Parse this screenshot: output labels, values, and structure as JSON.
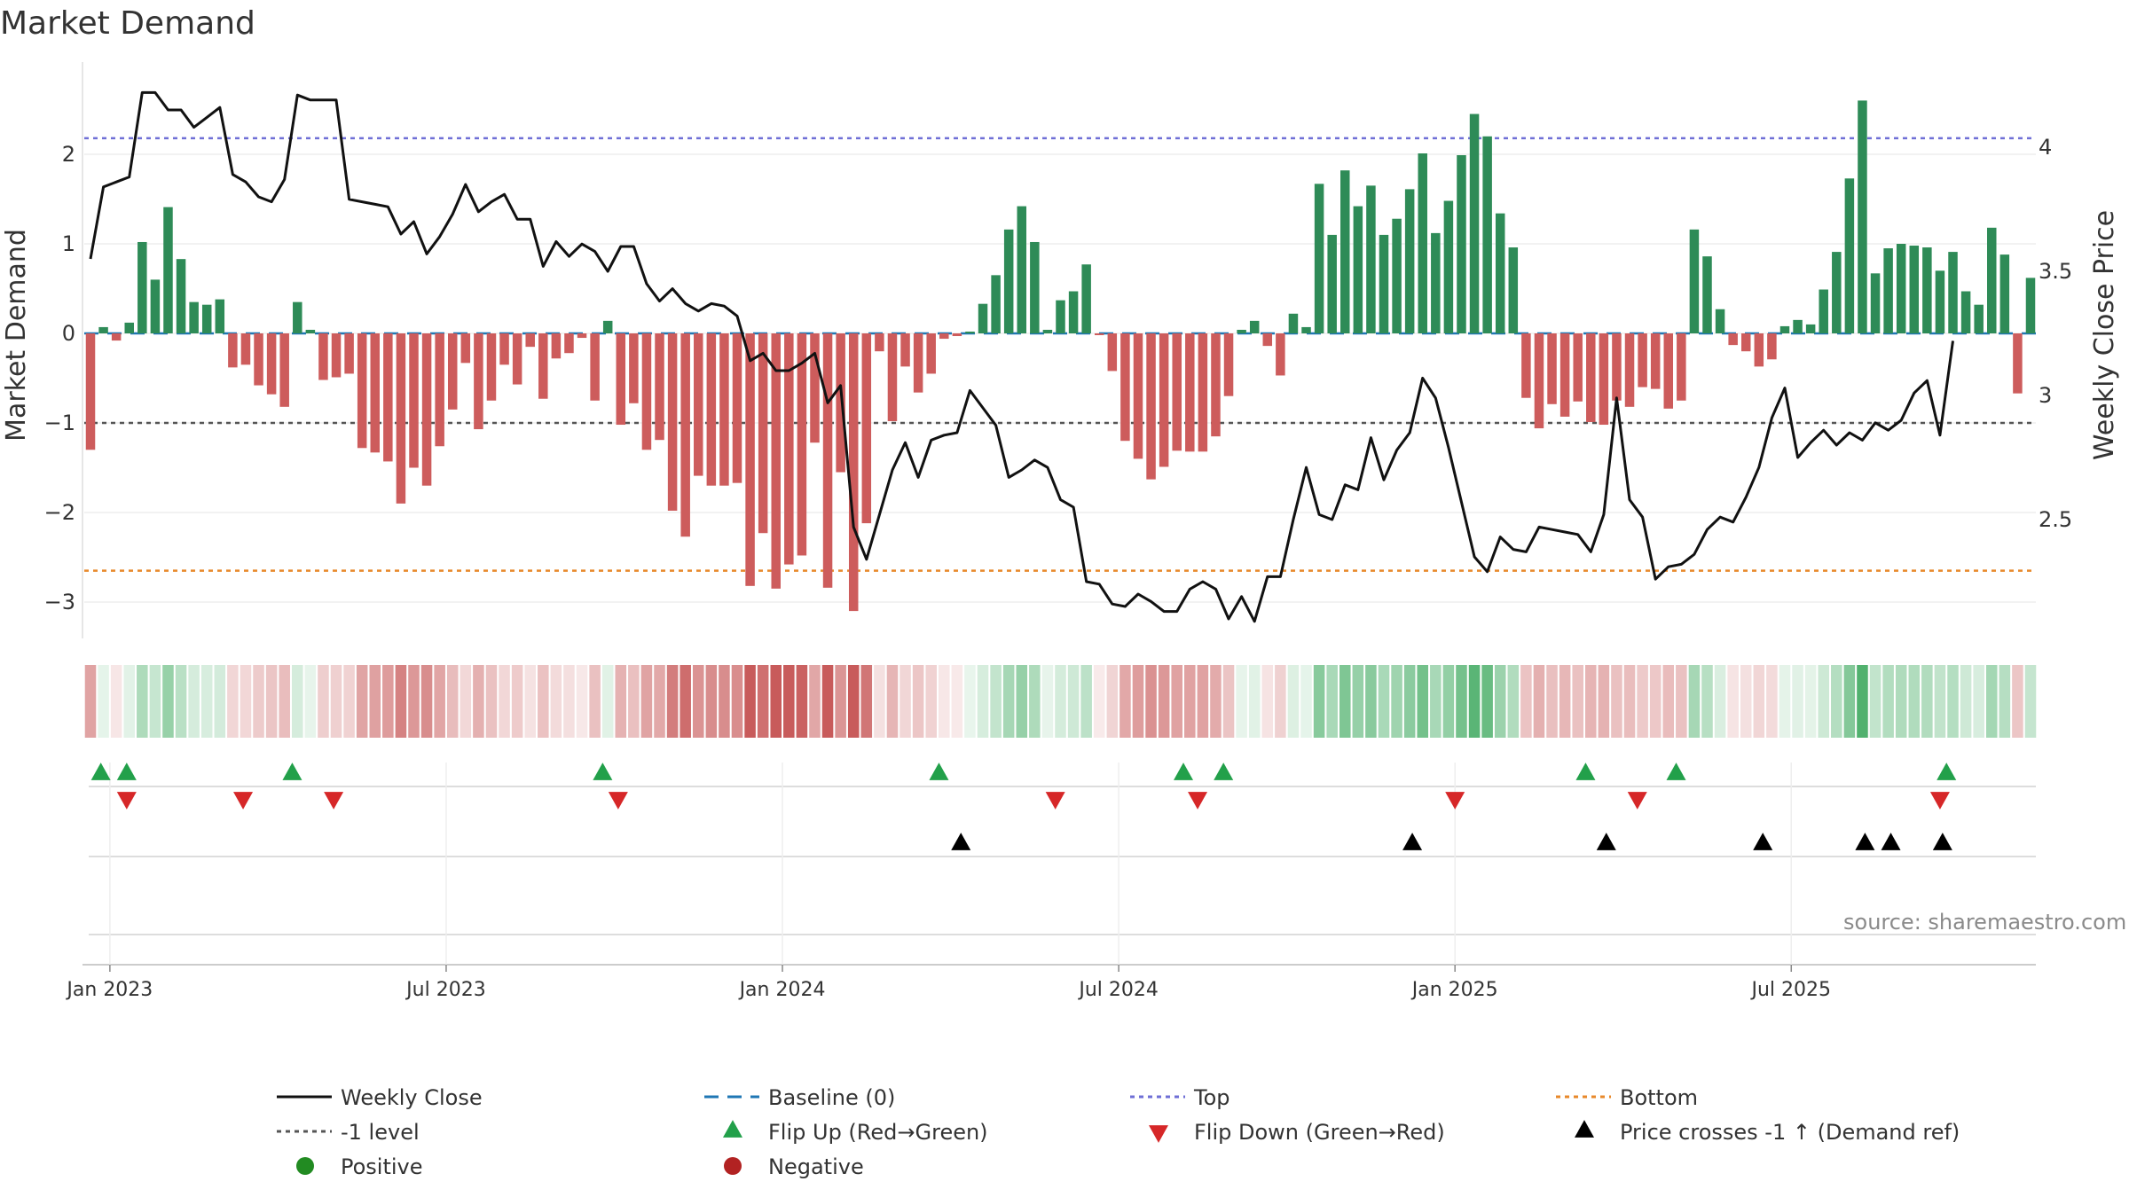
{
  "chart_data": {
    "type": "bar",
    "title": "Market Demand",
    "ylabel_left": "Market Demand",
    "ylabel_right": "Weekly Close Price",
    "source": "source: sharemaestro.com",
    "left_axis": {
      "ticks": [
        2,
        1,
        0,
        -1,
        -2,
        -3
      ],
      "tick_labels": [
        "2",
        "1",
        "0",
        "−1",
        "−2",
        "−3"
      ],
      "ylim": [
        -3.4,
        2.9
      ]
    },
    "right_axis": {
      "ticks": [
        4,
        3.5,
        3,
        2.5
      ],
      "tick_labels": [
        "4",
        "3.5",
        "3",
        "2.5"
      ],
      "ylim": [
        2.05,
        4.3
      ]
    },
    "x_tick_labels": [
      "Jan 2023",
      "Jul 2023",
      "Jan 2024",
      "Jul 2024",
      "Jan 2025",
      "Jul 2025"
    ],
    "x_tick_weeks": [
      1.5,
      27.5,
      53.5,
      79.5,
      105.5,
      131.5
    ],
    "levels": {
      "top": 2.18,
      "bottom": -2.65,
      "minus_one": -1,
      "baseline": 0
    },
    "colors": {
      "positive": "#2e8b57",
      "negative": "#cd5c5c",
      "price": "#111111",
      "top": "#6f6fd6",
      "bottom": "#e8892b",
      "minus_one": "#555555",
      "baseline": "#1f77b4",
      "flip_up": "#22a04a",
      "flip_down": "#d62728",
      "cross": "#000000"
    },
    "demand": [
      -1.3,
      0.07,
      -0.08,
      0.12,
      1.02,
      0.6,
      1.41,
      0.83,
      0.35,
      0.32,
      0.38,
      -0.38,
      -0.35,
      -0.58,
      -0.68,
      -0.82,
      0.35,
      0.04,
      -0.52,
      -0.49,
      -0.45,
      -1.28,
      -1.33,
      -1.43,
      -1.9,
      -1.5,
      -1.7,
      -1.26,
      -0.85,
      -0.33,
      -1.07,
      -0.75,
      -0.35,
      -0.57,
      -0.15,
      -0.73,
      -0.28,
      -0.22,
      -0.05,
      -0.75,
      0.14,
      -1.02,
      -0.78,
      -1.3,
      -1.19,
      -1.98,
      -2.27,
      -1.59,
      -1.7,
      -1.7,
      -1.67,
      -2.82,
      -2.23,
      -2.85,
      -2.58,
      -2.48,
      -1.22,
      -2.84,
      -1.55,
      -3.1,
      -2.12,
      -0.2,
      -0.98,
      -0.37,
      -0.66,
      -0.45,
      -0.06,
      -0.03,
      0.02,
      0.33,
      0.65,
      1.16,
      1.42,
      1.02,
      0.04,
      0.37,
      0.47,
      0.77,
      -0.02,
      -0.42,
      -1.2,
      -1.4,
      -1.63,
      -1.49,
      -1.31,
      -1.32,
      -1.32,
      -1.15,
      -0.7,
      0.04,
      0.14,
      -0.14,
      -0.47,
      0.22,
      0.07,
      1.67,
      1.1,
      1.82,
      1.42,
      1.65,
      1.1,
      1.28,
      1.61,
      2.01,
      1.12,
      1.48,
      1.99,
      2.45,
      2.2,
      1.34,
      0.96,
      -0.72,
      -1.06,
      -0.79,
      -0.93,
      -0.76,
      -0.99,
      -1.02,
      -0.75,
      -0.82,
      -0.6,
      -0.62,
      -0.84,
      -0.75,
      1.16,
      0.86,
      0.27,
      -0.13,
      -0.2,
      -0.37,
      -0.29,
      0.08,
      0.15,
      0.1,
      0.49,
      0.91,
      1.73,
      2.6,
      0.67,
      0.95,
      1.0,
      0.98,
      0.96,
      0.7,
      0.91,
      0.47,
      0.32,
      1.18,
      0.88,
      -0.67,
      0.62
    ],
    "price": [
      3.55,
      3.84,
      3.86,
      3.88,
      4.22,
      4.22,
      4.15,
      4.15,
      4.08,
      4.12,
      4.16,
      3.89,
      3.86,
      3.8,
      3.78,
      3.87,
      4.21,
      4.19,
      4.19,
      4.19,
      3.79,
      3.78,
      3.77,
      3.76,
      3.65,
      3.7,
      3.57,
      3.64,
      3.73,
      3.85,
      3.74,
      3.78,
      3.81,
      3.71,
      3.71,
      3.52,
      3.62,
      3.56,
      3.61,
      3.58,
      3.5,
      3.6,
      3.6,
      3.45,
      3.38,
      3.43,
      3.37,
      3.34,
      3.37,
      3.36,
      3.32,
      3.14,
      3.17,
      3.1,
      3.1,
      3.13,
      3.17,
      2.97,
      3.04,
      2.47,
      2.34,
      2.52,
      2.7,
      2.81,
      2.67,
      2.82,
      2.84,
      2.85,
      3.02,
      2.95,
      2.88,
      2.67,
      2.7,
      2.74,
      2.71,
      2.58,
      2.55,
      2.25,
      2.24,
      2.16,
      2.15,
      2.2,
      2.17,
      2.13,
      2.13,
      2.22,
      2.25,
      2.22,
      2.1,
      2.19,
      2.09,
      2.27,
      2.27,
      2.5,
      2.71,
      2.52,
      2.5,
      2.64,
      2.62,
      2.83,
      2.66,
      2.78,
      2.85,
      3.07,
      2.99,
      2.79,
      2.57,
      2.35,
      2.29,
      2.43,
      2.38,
      2.37,
      2.47,
      2.46,
      2.45,
      2.44,
      2.37,
      2.52,
      2.99,
      2.58,
      2.51,
      2.26,
      2.31,
      2.32,
      2.36,
      2.46,
      2.51,
      2.49,
      2.59,
      2.71,
      2.91,
      3.03,
      2.75,
      2.81,
      2.86,
      2.8,
      2.85,
      2.82,
      2.89,
      2.86,
      2.9,
      3.01,
      3.06,
      2.84,
      3.22
    ]
  },
  "flip_up_weeks": [
    0.8,
    2.8,
    15.6,
    39.6,
    65.6,
    84.5,
    87.6,
    115.6,
    122.6,
    143.5
  ],
  "flip_down_weeks": [
    2.8,
    11.8,
    18.8,
    40.8,
    74.6,
    85.6,
    105.5,
    119.6,
    143.0
  ],
  "cross_up_weeks": [
    67.3,
    102.2,
    117.2,
    129.3,
    137.2,
    139.2,
    143.2
  ],
  "legend": [
    {
      "label": "Weekly Close",
      "symbol": "line"
    },
    {
      "label": "Baseline (0)",
      "symbol": "dash"
    },
    {
      "label": "Top",
      "symbol": "dot-blue"
    },
    {
      "label": "Bottom",
      "symbol": "dot-orange"
    },
    {
      "label": "-1 level",
      "symbol": "dot-gray"
    },
    {
      "label": "Flip Up (Red→Green)",
      "symbol": "tri-up-green"
    },
    {
      "label": "Flip Down (Green→Red)",
      "symbol": "tri-down-red"
    },
    {
      "label": "Price crosses -1 ↑ (Demand ref)",
      "symbol": "tri-up-black"
    },
    {
      "label": "Positive",
      "symbol": "circle-green"
    },
    {
      "label": "Negative",
      "symbol": "circle-red"
    }
  ]
}
